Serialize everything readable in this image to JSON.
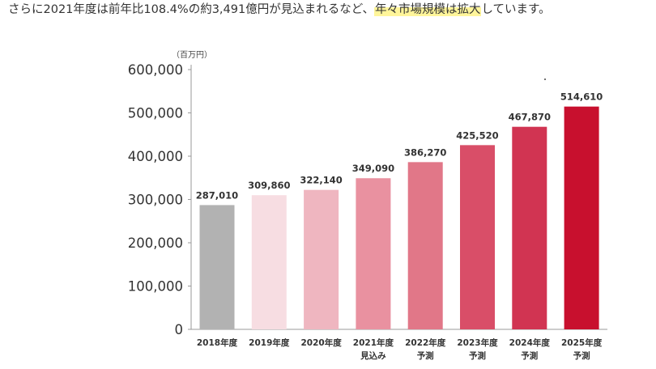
{
  "intro": {
    "text_before": "さらに2021年度は前年比108.4%の約3,491億円が見込まれるなど、",
    "text_highlight": "年々市場規模は拡大",
    "text_after": "しています。"
  },
  "chart_data": {
    "type": "bar",
    "unit_label": "（百万円）",
    "categories": [
      {
        "line1": "2018年度",
        "line2": ""
      },
      {
        "line1": "2019年度",
        "line2": ""
      },
      {
        "line1": "2020年度",
        "line2": ""
      },
      {
        "line1": "2021年度",
        "line2": "見込み"
      },
      {
        "line1": "2022年度",
        "line2": "予測"
      },
      {
        "line1": "2023年度",
        "line2": "予測"
      },
      {
        "line1": "2024年度",
        "line2": "予測"
      },
      {
        "line1": "2025年度",
        "line2": "予測"
      }
    ],
    "values": [
      287010,
      309860,
      322140,
      349090,
      386270,
      425520,
      467870,
      514610
    ],
    "value_labels": [
      "287,010",
      "309,860",
      "322,140",
      "349,090",
      "386,270",
      "425,520",
      "467,870",
      "514,610"
    ],
    "bar_colors": [
      "#b2b2b2",
      "#f7dde2",
      "#efb6c0",
      "#e991a0",
      "#e17788",
      "#d94e68",
      "#d13452",
      "#c8102e"
    ],
    "ylim": [
      0,
      600000
    ],
    "yticks": [
      0,
      100000,
      200000,
      300000,
      400000,
      500000,
      600000
    ],
    "ytick_labels": [
      "0",
      "100,000",
      "200,000",
      "300,000",
      "400,000",
      "500,000",
      "600,000"
    ],
    "grid": false,
    "legend": "none"
  }
}
